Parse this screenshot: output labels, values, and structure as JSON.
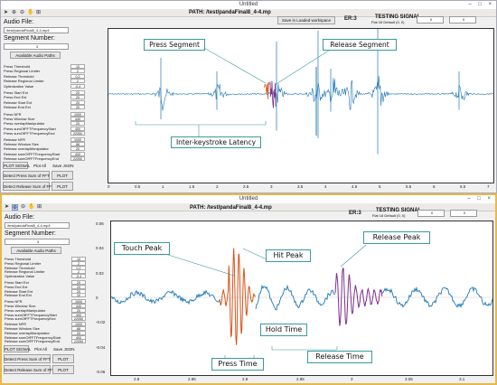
{
  "window": {
    "title": "Untitled",
    "controls": "– □ ×"
  },
  "toolbar": {
    "icons": [
      "arrow-icon",
      "zoom-in-icon",
      "zoom-out-icon",
      "pan-icon",
      "data-cursor-icon"
    ]
  },
  "top": {
    "audio_file_label": "Audio File:",
    "audio_file_value": "/test/pandaFinal8_4-4.mp4",
    "segment_number_label": "Segment Number:",
    "segment_number_value": "3",
    "available_paths_button": "Available Audio Paths",
    "path_label": "PATH: /test/pandaFinal8_4-4.mp",
    "save_workspace_button": "Save in Loaded workspace",
    "er_label": "ER:3",
    "testing_label": "TESTING SIGNAL",
    "testing_sub": "Flat 16 Default (0, 0)",
    "field_a": "0",
    "field_b": "0",
    "params": [
      {
        "label": "Press Threshold",
        "value": "10"
      },
      {
        "label": "Press Regional Limiter",
        "value": "2"
      },
      {
        "label": "Release Threshold",
        "value": "0.2"
      },
      {
        "label": "Release Regional Limiter",
        "value": "2"
      },
      {
        "label": "Optimization Value",
        "value": "-0.4"
      },
      {
        "label": "Press Start Ext",
        "value": "20"
      },
      {
        "label": "Press End Ext",
        "value": "20"
      },
      {
        "label": "Release Start Ext",
        "value": "20"
      },
      {
        "label": "Release End Ext",
        "value": "20"
      },
      {
        "label": "Press NFR",
        "value": "1000"
      },
      {
        "label": "Press Window Size",
        "value": "440"
      },
      {
        "label": "Press overlapManipulator",
        "value": "20"
      },
      {
        "label": "Press sumOfFFTFrequencyStart",
        "value": "400"
      },
      {
        "label": "Press sumOfFFTFrequencyEnd",
        "value": "22050"
      },
      {
        "label": "Release NFR",
        "value": "1000"
      },
      {
        "label": "Release Window Size",
        "value": "88"
      },
      {
        "label": "Release overlapManipulator",
        "value": "20"
      },
      {
        "label": "Release sumOfFFTFrequencyStart",
        "value": "400"
      },
      {
        "label": "Release sumOfFFTFrequencyEnd",
        "value": "22050"
      }
    ],
    "plot_signal_button": "PLOT SIGNAL",
    "plot_all_button": "Plot All",
    "save_json_button": "Save JSON",
    "detect_press_button": "Detect Press Sum of FFT",
    "detect_release_button": "Detect Release Sum of FFT",
    "plot_button": "PLOT",
    "annotations": {
      "press_segment": "Press Segment",
      "release_segment": "Release Segment",
      "latency": "Inter-keystroke Latency"
    },
    "x_ticks": [
      "0",
      "0.5",
      "1",
      "1.5",
      "2",
      "2.5",
      "3",
      "3.5",
      "4",
      "4.5",
      "5",
      "5.5",
      "6",
      "6.5",
      "7"
    ]
  },
  "bottom": {
    "audio_file_label": "Audio File:",
    "audio_file_value": "/test/pandaFinal8_4-4.mp4",
    "segment_number_label": "Segment Number:",
    "segment_number_value": "3",
    "available_paths_button": "Available Audio Paths",
    "path_label": "PATH: /test/pandaFinal8_4-4.mp",
    "er_label": "ER:3",
    "testing_label": "TESTING SIGNAL",
    "testing_sub": "Flat 16 Default (0, 0)",
    "field_a": "0",
    "field_b": "0",
    "params": [
      {
        "label": "Press Threshold",
        "value": "10"
      },
      {
        "label": "Press Regional Limiter",
        "value": "2"
      },
      {
        "label": "Release Threshold",
        "value": "0.2"
      },
      {
        "label": "Release Regional Limiter",
        "value": "2"
      },
      {
        "label": "Optimization Value",
        "value": "-0.4"
      },
      {
        "label": "Press Start Ext",
        "value": "20"
      },
      {
        "label": "Press End Ext",
        "value": "20"
      },
      {
        "label": "Release Start Ext",
        "value": "20"
      },
      {
        "label": "Release End Ext",
        "value": "20"
      },
      {
        "label": "Press NFR",
        "value": "1000"
      },
      {
        "label": "Press Window Size",
        "value": "440"
      },
      {
        "label": "Press overlapManipulator",
        "value": "20"
      },
      {
        "label": "Press sumOfFFTFrequencyStart",
        "value": "400"
      },
      {
        "label": "Press sumOfFFTFrequencyEnd",
        "value": "22050"
      },
      {
        "label": "Release NFR",
        "value": "1000"
      },
      {
        "label": "Release Window Size",
        "value": "88"
      },
      {
        "label": "Release overlapManipulator",
        "value": "20"
      },
      {
        "label": "Release sumOfFFTFrequencyStart",
        "value": "400"
      },
      {
        "label": "Release sumOfFFTFrequencyEnd",
        "value": "22050"
      }
    ],
    "plot_signal_button": "PLOT SIGNAL",
    "plot_all_button": "Plot All",
    "save_json_button": "Save JSON",
    "detect_press_button": "Detect Press Sum of FFT",
    "detect_release_button": "Detect Release Sum of FFT",
    "plot_button": "PLOT",
    "annotations": {
      "touch_peak": "Touch Peak",
      "hit_peak": "Hit Peak",
      "release_peak": "Release Peak",
      "hold_time": "Hold Time",
      "press_time": "Press Time",
      "release_time": "Release Time"
    },
    "y_ticks": [
      "0.06",
      "0.04",
      "0.02",
      "0",
      "-0.02",
      "-0.04",
      "-0.06"
    ],
    "x_ticks": [
      "2.8",
      "2.85",
      "2.9",
      "2.95",
      "3",
      "3.05",
      "3.1"
    ]
  },
  "colors": {
    "signal": "#1f77b4",
    "press": "#d95319",
    "release": "#7e2f8e",
    "annotation_border": "#3a9a9e",
    "highlight_border": "#e8b84a"
  }
}
